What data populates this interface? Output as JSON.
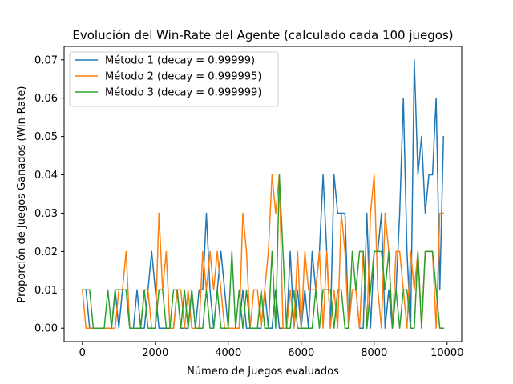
{
  "chart_data": {
    "type": "line",
    "title": "Evolución del Win-Rate del Agente (calculado cada 100 juegos)",
    "xlabel": "Número de Juegos evaluados",
    "ylabel": "Proporción de Juegos Ganados (Win-Rate)",
    "xlim": [
      -500,
      10400
    ],
    "ylim": [
      -0.0035,
      0.0735
    ],
    "xticks": [
      0,
      2000,
      4000,
      6000,
      8000,
      10000
    ],
    "xtick_labels": [
      "0",
      "2000",
      "4000",
      "6000",
      "8000",
      "10000"
    ],
    "yticks": [
      0.0,
      0.01,
      0.02,
      0.03,
      0.04,
      0.05,
      0.06,
      0.07
    ],
    "ytick_labels": [
      "0.00",
      "0.01",
      "0.02",
      "0.03",
      "0.04",
      "0.05",
      "0.06",
      "0.07"
    ],
    "grid": false,
    "legend_position": "top-left",
    "x": [
      0,
      100,
      200,
      300,
      400,
      500,
      600,
      700,
      800,
      900,
      1000,
      1100,
      1200,
      1300,
      1400,
      1500,
      1600,
      1700,
      1800,
      1900,
      2000,
      2100,
      2200,
      2300,
      2400,
      2500,
      2600,
      2700,
      2800,
      2900,
      3000,
      3100,
      3200,
      3300,
      3400,
      3500,
      3600,
      3700,
      3800,
      3900,
      4000,
      4100,
      4200,
      4300,
      4400,
      4500,
      4600,
      4700,
      4800,
      4900,
      5000,
      5100,
      5200,
      5300,
      5400,
      5500,
      5600,
      5700,
      5800,
      5900,
      6000,
      6100,
      6200,
      6300,
      6400,
      6500,
      6600,
      6700,
      6800,
      6900,
      7000,
      7100,
      7200,
      7300,
      7400,
      7500,
      7600,
      7700,
      7800,
      7900,
      8000,
      8100,
      8200,
      8300,
      8400,
      8500,
      8600,
      8700,
      8800,
      8900,
      9000,
      9100,
      9200,
      9300,
      9400,
      9500,
      9600,
      9700,
      9800,
      9900
    ],
    "series": [
      {
        "name": "Método 1 (decay = 0.99999)",
        "color": "#1f77b4",
        "values": [
          0.01,
          0.01,
          0.0,
          0.0,
          0.0,
          0.0,
          0.0,
          0.0,
          0.0,
          0.01,
          0.0,
          0.01,
          0.01,
          0.0,
          0.0,
          0.01,
          0.0,
          0.0,
          0.01,
          0.02,
          0.01,
          0.0,
          0.0,
          0.0,
          0.0,
          0.0,
          0.01,
          0.0,
          0.0,
          0.0,
          0.01,
          0.0,
          0.01,
          0.01,
          0.03,
          0.01,
          0.0,
          0.01,
          0.02,
          0.01,
          0.0,
          0.0,
          0.0,
          0.0,
          0.01,
          0.0,
          0.0,
          0.0,
          0.0,
          0.0,
          0.01,
          0.0,
          0.0,
          0.01,
          0.0,
          0.0,
          0.0,
          0.02,
          0.0,
          0.01,
          0.0,
          0.01,
          0.0,
          0.02,
          0.01,
          0.02,
          0.04,
          0.02,
          0.0,
          0.04,
          0.03,
          0.03,
          0.03,
          0.0,
          0.01,
          0.01,
          0.0,
          0.0,
          0.03,
          0.0,
          0.02,
          0.02,
          0.03,
          0.0,
          0.01,
          0.0,
          0.01,
          0.03,
          0.06,
          0.02,
          0.0,
          0.07,
          0.04,
          0.05,
          0.03,
          0.04,
          0.04,
          0.06,
          0.01,
          0.05
        ]
      },
      {
        "name": "Método 2 (decay = 0.999995)",
        "color": "#ff7f0e",
        "values": [
          0.01,
          0.0,
          0.0,
          0.0,
          0.0,
          0.0,
          0.0,
          0.0,
          0.0,
          0.0,
          0.01,
          0.01,
          0.02,
          0.0,
          0.0,
          0.0,
          0.0,
          0.01,
          0.01,
          0.0,
          0.0,
          0.03,
          0.01,
          0.02,
          0.0,
          0.0,
          0.01,
          0.01,
          0.0,
          0.01,
          0.0,
          0.0,
          0.0,
          0.02,
          0.01,
          0.02,
          0.01,
          0.02,
          0.01,
          0.0,
          0.0,
          0.0,
          0.0,
          0.0,
          0.03,
          0.02,
          0.0,
          0.01,
          0.01,
          0.0,
          0.01,
          0.02,
          0.04,
          0.03,
          0.04,
          0.0,
          0.0,
          0.01,
          0.0,
          0.02,
          0.0,
          0.02,
          0.01,
          0.01,
          0.01,
          0.02,
          0.0,
          0.02,
          0.0,
          0.01,
          0.0,
          0.03,
          0.02,
          0.0,
          0.01,
          0.01,
          0.0,
          0.02,
          0.0,
          0.03,
          0.04,
          0.01,
          0.0,
          0.03,
          0.02,
          0.0,
          0.02,
          0.02,
          0.01,
          0.0,
          0.02,
          0.01,
          0.02,
          0.0,
          0.02,
          0.02,
          0.02,
          0.0,
          0.03,
          0.03
        ]
      },
      {
        "name": "Método 3 (decay = 0.999999)",
        "color": "#2ca02c",
        "values": [
          0.01,
          0.01,
          0.01,
          0.0,
          0.0,
          0.0,
          0.0,
          0.01,
          0.0,
          0.01,
          0.01,
          0.01,
          0.01,
          0.0,
          0.0,
          0.0,
          0.0,
          0.01,
          0.0,
          0.0,
          0.0,
          0.01,
          0.01,
          0.0,
          0.0,
          0.01,
          0.01,
          0.0,
          0.01,
          0.0,
          0.01,
          0.0,
          0.0,
          0.0,
          0.01,
          0.0,
          0.0,
          0.01,
          0.0,
          0.0,
          0.0,
          0.02,
          0.0,
          0.01,
          0.0,
          0.01,
          0.0,
          0.0,
          0.0,
          0.01,
          0.0,
          0.0,
          0.02,
          0.0,
          0.04,
          0.02,
          0.0,
          0.0,
          0.01,
          0.0,
          0.0,
          0.0,
          0.0,
          0.0,
          0.01,
          0.0,
          0.01,
          0.01,
          0.01,
          0.0,
          0.01,
          0.01,
          0.0,
          0.0,
          0.02,
          0.01,
          0.02,
          0.02,
          0.0,
          0.01,
          0.02,
          0.02,
          0.02,
          0.01,
          0.02,
          0.0,
          0.01,
          0.0,
          0.01,
          0.01,
          0.0,
          0.0,
          0.02,
          0.0,
          0.02,
          0.02,
          0.02,
          0.01,
          0.0,
          0.0
        ]
      }
    ]
  }
}
